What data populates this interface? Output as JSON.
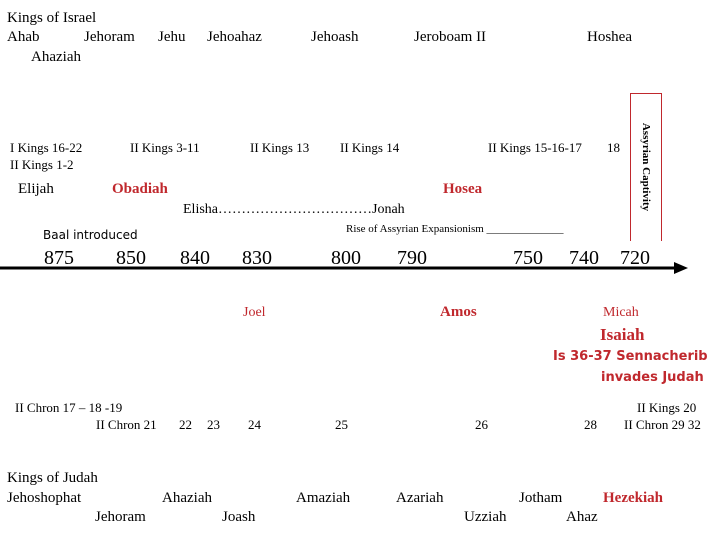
{
  "israel": {
    "header": "Kings of Israel",
    "kings": {
      "ahab": "Ahab",
      "jehoram": "Jehoram",
      "jehu": "Jehu",
      "jehoahaz": "Jehoahaz",
      "jehoash": "Jehoash",
      "jeroboam": "Jeroboam II",
      "hoshea": "Hoshea",
      "ahaziah": "Ahaziah"
    },
    "captivity": "Assyrian Captivity",
    "refs": {
      "r1": "I Kings 16-22",
      "r2": "II Kings 1-2",
      "r3": "II Kings 3-11",
      "r4": "II Kings 13",
      "r5": "II Kings 14",
      "r6": "II Kings 15-16-17",
      "r7": "18"
    },
    "prophets": {
      "elijah": "Elijah",
      "obadiah": "Obadiah",
      "hosea": "Hosea",
      "elisha_jonah": "Elisha……………………………Jonah"
    }
  },
  "timeline": {
    "baal": "Baal introduced",
    "assyria": "Rise of Assyrian Expansionism ______________",
    "years": [
      "875",
      "850",
      "840",
      "830",
      "800",
      "790",
      "750",
      "740",
      "720"
    ]
  },
  "judah_prophets": {
    "joel": "Joel",
    "amos": "Amos",
    "micah": "Micah",
    "isaiah": "Isaiah",
    "sennacherib_1": "Is 36-37 Sennacherib",
    "sennacherib_2": "invades Judah"
  },
  "judah_refs": {
    "c1": "II Chron 17 – 18 -19",
    "c2": "II Chron 21",
    "c3": "22",
    "c4": "23",
    "c5": "24",
    "c6": "25",
    "c7": "26",
    "c8": "28",
    "c9": "II Kings 20",
    "c10": "II Chron 29  32"
  },
  "judah": {
    "header": "Kings of Judah",
    "kings": {
      "jehoshophat": "Jehoshophat",
      "ahaziah": "Ahaziah",
      "amaziah": "Amaziah",
      "azariah": "Azariah",
      "jotham": "Jotham",
      "hezekiah": "Hezekiah",
      "jehoram": "Jehoram",
      "joash": "Joash",
      "uzziah": "Uzziah",
      "ahaz": "Ahaz"
    }
  },
  "colors": {
    "accent_red": "#c0282d",
    "text": "#000000",
    "background": "#ffffff"
  }
}
